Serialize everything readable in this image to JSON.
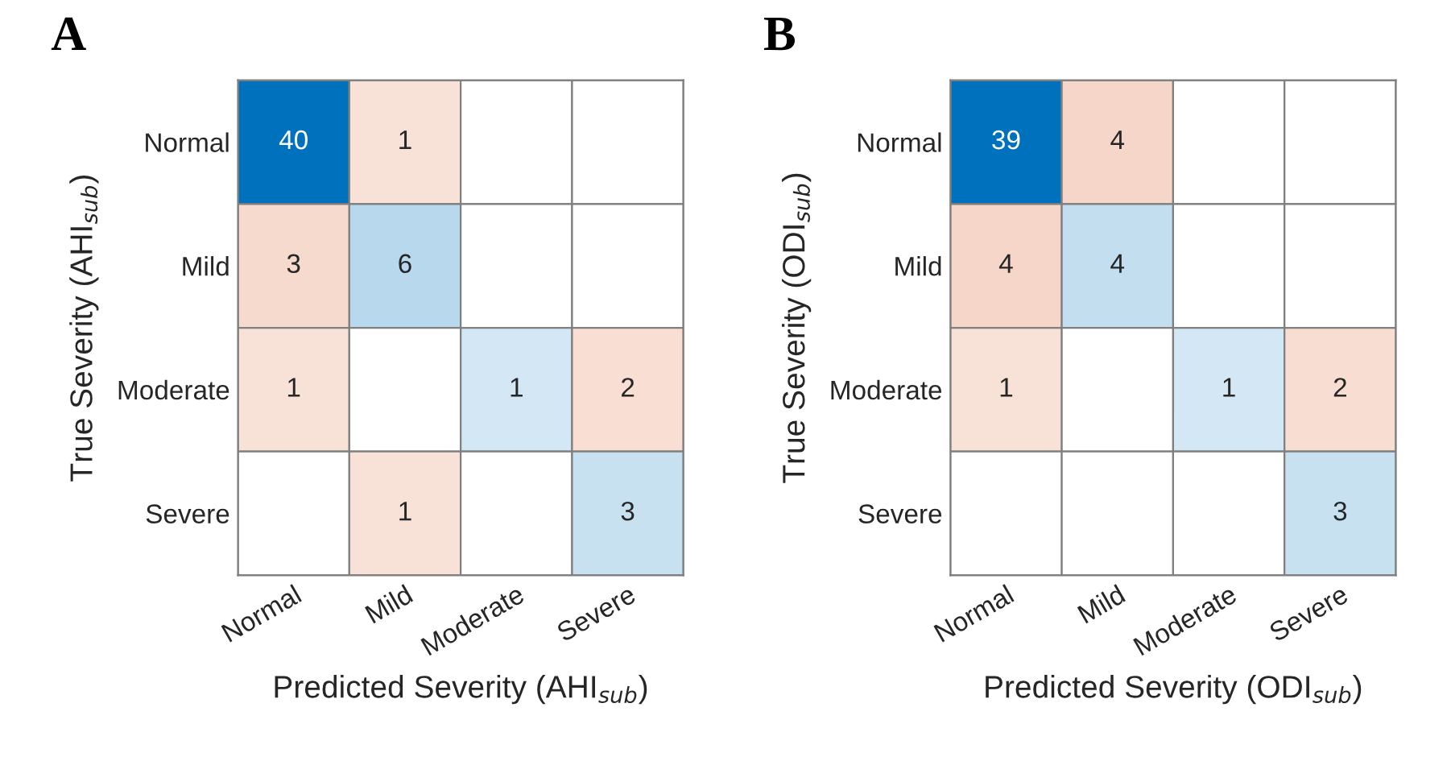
{
  "chart_data": [
    {
      "type": "heatmap",
      "title": "A",
      "xlabel": "Predicted Severity (AHI$_{sub}$)",
      "ylabel": "True Severity (AHI$_{sub}$)",
      "categories": [
        "Normal",
        "Mild",
        "Moderate",
        "Severe"
      ],
      "y_categories": [
        "Normal",
        "Mild",
        "Moderate",
        "Severe"
      ],
      "cells": [
        [
          40,
          1,
          null,
          null
        ],
        [
          3,
          6,
          null,
          null
        ],
        [
          1,
          null,
          1,
          2
        ],
        [
          null,
          1,
          null,
          3
        ]
      ],
      "data_labels": true,
      "colors": [
        "#0072bd",
        "#d95319"
      ]
    },
    {
      "type": "heatmap",
      "title": "B",
      "xlabel": "Predicted Severity (ODI$_{sub}$)",
      "ylabel": "True Severity (ODI$_{sub}$)",
      "categories": [
        "Normal",
        "Mild",
        "Moderate",
        "Severe"
      ],
      "y_categories": [
        "Normal",
        "Mild",
        "Moderate",
        "Severe"
      ],
      "cells": [
        [
          39,
          4,
          null,
          null
        ],
        [
          4,
          4,
          null,
          null
        ],
        [
          1,
          null,
          1,
          2
        ],
        [
          null,
          null,
          null,
          3
        ]
      ],
      "data_labels": true,
      "colors": [
        "#0072bd",
        "#d95319"
      ]
    }
  ]
}
